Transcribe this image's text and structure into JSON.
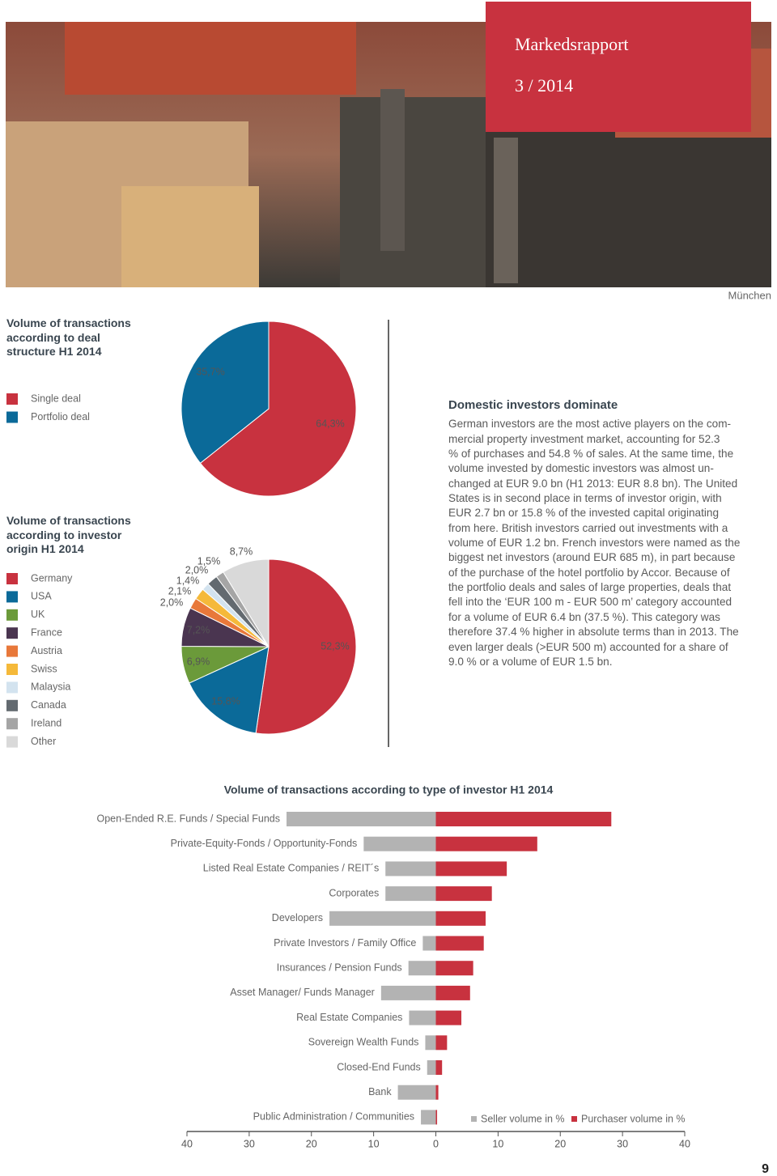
{
  "header": {
    "title": "Markedsrapport",
    "issue": "3 / 2014",
    "photo_caption": "München"
  },
  "chart_data": [
    {
      "type": "pie",
      "title": "Volume of transactions according to deal structure H1 2014",
      "categories": [
        "Single deal",
        "Portfolio deal"
      ],
      "values": [
        64.3,
        35.7
      ],
      "value_labels": [
        "64,3%",
        "35,7%"
      ],
      "colors": [
        "#c8323f",
        "#0b6a99"
      ]
    },
    {
      "type": "pie",
      "title": "Volume of transactions according to investor origin H1 2014",
      "categories": [
        "Germany",
        "USA",
        "UK",
        "France",
        "Austria",
        "Swiss",
        "Malaysia",
        "Canada",
        "Ireland",
        "Other"
      ],
      "values": [
        52.3,
        15.8,
        6.9,
        7.2,
        2.0,
        2.1,
        1.4,
        2.0,
        1.5,
        8.7
      ],
      "value_labels": [
        "52,3%",
        "15,8%",
        "6,9%",
        "7,2%",
        "2,0%",
        "2,1%",
        "1,4%",
        "2,0%",
        "1,5%",
        "8,7%"
      ],
      "colors": [
        "#c8323f",
        "#0b6a99",
        "#6b9a3a",
        "#4a3550",
        "#e8783a",
        "#f5b93a",
        "#d3e3ef",
        "#636a70",
        "#a5a5a5",
        "#d9d9d9"
      ]
    },
    {
      "type": "bar",
      "orientation": "horizontal",
      "title": "Volume of transactions according to type of investor H1 2014",
      "categories": [
        "Open-Ended R.E. Funds / Special Funds",
        "Private-Equity-Fonds / Opportunity-Fonds",
        "Listed Real Estate Companies / REIT´s",
        "Corporates",
        "Developers",
        "Private Investors / Family Office",
        "Insurances / Pension Funds",
        "Asset Manager/ Funds Manager",
        "Real Estate Companies",
        "Sovereign Wealth Funds",
        "Closed-End Funds",
        "Bank",
        "Public Administration / Communities"
      ],
      "series": [
        {
          "name": "Seller volume in %",
          "color": "#b3b3b3",
          "values": [
            -24.0,
            -11.6,
            -8.1,
            -8.1,
            -17.1,
            -2.1,
            -4.4,
            -8.8,
            -4.3,
            -1.7,
            -1.4,
            -6.1,
            -2.4
          ]
        },
        {
          "name": "Purchaser volume in %",
          "color": "#c8323f",
          "values": [
            28.2,
            16.3,
            11.4,
            9.0,
            8.0,
            7.7,
            6.0,
            5.5,
            4.1,
            1.8,
            1.0,
            0.4,
            0.2
          ]
        }
      ],
      "xlim": [
        -40,
        40
      ],
      "xticks": [
        {
          "value": -40,
          "label": "40"
        },
        {
          "value": -30,
          "label": "30"
        },
        {
          "value": -20,
          "label": "20"
        },
        {
          "value": -10,
          "label": "10"
        },
        0,
        10,
        20,
        30,
        40
      ]
    }
  ],
  "article": {
    "heading": "Domestic investors dominate",
    "lines": [
      "German investors are the most active players on the com-",
      "mercial property investment market, accounting for 52.3",
      "% of purchases and 54.8 % of sales. At the same time, the",
      "volume invested by domestic investors was almost un-",
      "changed at EUR 9.0 bn (H1 2013: EUR 8.8 bn). The United",
      "States is in second place in terms of investor origin, with",
      "EUR 2.7 bn or 15.8 % of the invested capital originating",
      "from here. British investors carried out investments with a",
      "volume of EUR 1.2 bn. French investors were named as the",
      "biggest net investors (around EUR 685 m), in part because",
      "of the purchase of the hotel portfolio by Accor. Because of",
      "the portfolio deals and sales of large properties, deals that",
      "fell into the ‘EUR 100 m - EUR 500 m’ category accounted",
      "for a volume of EUR 6.4 bn (37.5 %). This category was",
      "therefore 37.4 % higher in absolute terms than in 2013. The",
      "even larger deals (>EUR 500 m) accounted for a share of",
      "9.0 % or a volume of EUR 1.5 bn."
    ]
  },
  "page_number": "9"
}
